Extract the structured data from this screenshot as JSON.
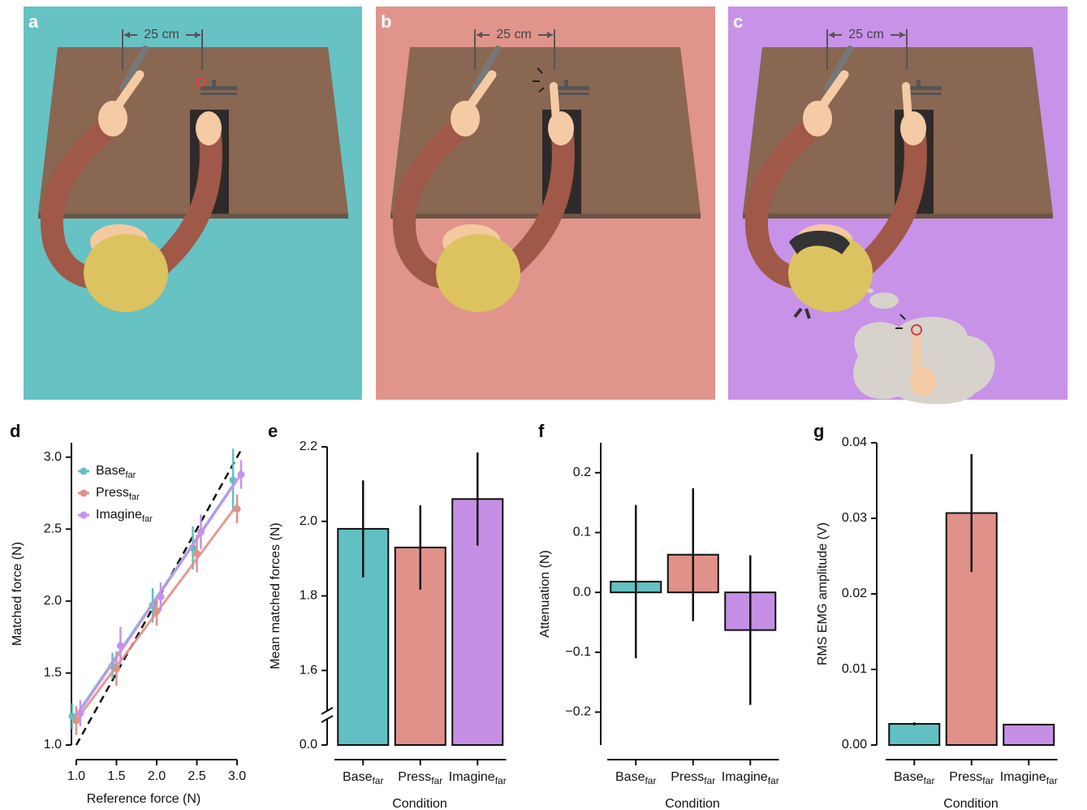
{
  "illustrations": [
    {
      "label": "a",
      "distance": "25 cm"
    },
    {
      "label": "b",
      "distance": "25 cm"
    },
    {
      "label": "c",
      "distance": "25 cm"
    }
  ],
  "chart_data": [
    {
      "type": "line",
      "panel": "d",
      "x_label": "Reference force (N)",
      "y_label": "Matched force (N)",
      "subscript": "far",
      "xlim": [
        0.94,
        3.04
      ],
      "xticks": [
        {
          "value": 1,
          "label": "1.0"
        },
        1.5,
        {
          "value": 2,
          "label": "2.0"
        },
        2.5,
        {
          "value": 3,
          "label": "3.0"
        }
      ],
      "ylim": [
        1.0,
        3.1
      ],
      "yticks": [
        {
          "value": 1,
          "label": "1.0"
        },
        1.5,
        {
          "value": 2,
          "label": "2.0"
        },
        2.5,
        {
          "value": 3,
          "label": "3.0"
        }
      ],
      "identity_line": true,
      "legend": "upper left",
      "series": [
        {
          "name": "Base",
          "color": "#62c0c2",
          "x": [
            0.95,
            1.45,
            1.95,
            2.45,
            2.95
          ],
          "values": [
            1.2,
            1.55,
            1.97,
            2.37,
            2.84
          ],
          "errors": [
            0.09,
            0.09,
            0.12,
            0.15,
            0.22
          ]
        },
        {
          "name": "Press",
          "color": "#e0918a",
          "x": [
            1.0,
            1.5,
            2.0,
            2.5,
            3.0
          ],
          "values": [
            1.17,
            1.53,
            1.93,
            2.33,
            2.64
          ],
          "errors": [
            0.1,
            0.12,
            0.1,
            0.13,
            0.1
          ]
        },
        {
          "name": "Imagine",
          "color": "#c792ea",
          "x": [
            1.05,
            1.55,
            2.05,
            2.55,
            3.05
          ],
          "values": [
            1.22,
            1.69,
            2.03,
            2.48,
            2.88
          ],
          "errors": [
            0.09,
            0.13,
            0.1,
            0.12,
            0.1
          ]
        }
      ]
    },
    {
      "type": "bar",
      "panel": "e",
      "x_label": "Condition",
      "y_label": "Mean matched forces (N)",
      "subscript": "far",
      "categories": [
        "Base",
        "Press",
        "Imagine"
      ],
      "values": [
        1.98,
        1.93,
        2.06
      ],
      "errors": [
        0.13,
        0.113,
        0.125
      ],
      "colors": [
        "#62c0c2",
        "#e0918a",
        "#c68fe6"
      ],
      "ylim": [
        0,
        2.2
      ],
      "axis_break": [
        0,
        1.4
      ],
      "yticks": [
        {
          "value": 0,
          "label": "0.0"
        },
        1.6,
        1.8,
        {
          "value": 2,
          "label": "2.0"
        },
        2.2
      ]
    },
    {
      "type": "bar",
      "panel": "f",
      "x_label": "Condition",
      "y_label": "Attenuation (N)",
      "subscript": "far",
      "categories": [
        "Base",
        "Press",
        "Imagine"
      ],
      "values": [
        0.018,
        0.063,
        -0.063
      ],
      "errors": [
        0.128,
        0.111,
        0.125
      ],
      "colors": [
        "#62c0c2",
        "#e0918a",
        "#c68fe6"
      ],
      "ylim": [
        -0.255,
        0.25
      ],
      "yticks": [
        {
          "value": -0.2,
          "label": "−0.2"
        },
        {
          "value": -0.1,
          "label": "−0.1"
        },
        {
          "value": 0,
          "label": "0.0"
        },
        0.1,
        0.2
      ]
    },
    {
      "type": "bar",
      "panel": "g",
      "x_label": "Condition",
      "y_label": "RMS EMG amplitude (V)",
      "subscript": "far",
      "categories": [
        "Base",
        "Press",
        "Imagine"
      ],
      "values": [
        0.0028,
        0.0307,
        0.0027
      ],
      "errors": [
        0.0002,
        0.0078,
        0.0001
      ],
      "colors": [
        "#62c0c2",
        "#e0918a",
        "#c68fe6"
      ],
      "ylim": [
        0,
        0.04
      ],
      "yticks": [
        {
          "value": 0,
          "label": "0.00"
        },
        0.01,
        0.02,
        0.03,
        0.04
      ]
    }
  ]
}
